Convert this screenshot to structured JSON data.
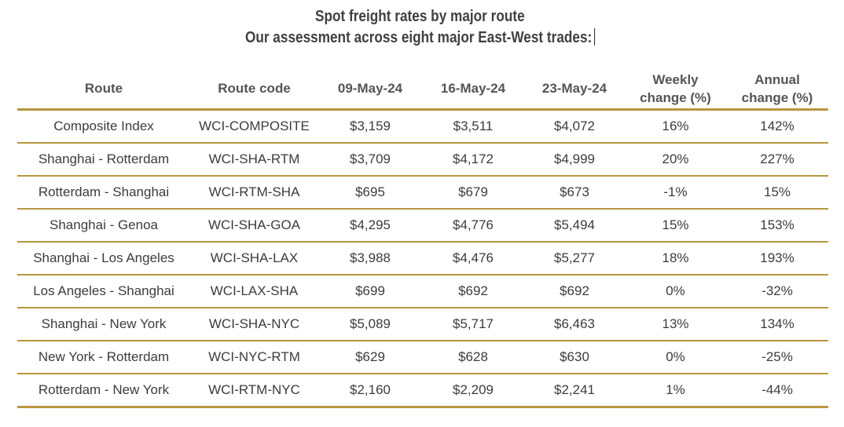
{
  "title": "Spot freight rates by major route",
  "subtitle": "Our assessment across eight major East-West trades:",
  "colors": {
    "rule": "#b8963e",
    "text": "#3c3c3c",
    "header_text": "#555555"
  },
  "chart_data": {
    "type": "table",
    "title": "Spot freight rates by major route",
    "subtitle": "Our assessment across eight major East-West trades:",
    "columns": [
      "Route",
      "Route code",
      "09-May-24",
      "16-May-24",
      "23-May-24",
      "Weekly change (%)",
      "Annual change (%)"
    ],
    "header_lines": [
      [
        "Route"
      ],
      [
        "Route code"
      ],
      [
        "09-May-24"
      ],
      [
        "16-May-24"
      ],
      [
        "23-May-24"
      ],
      [
        "Weekly",
        "change (%)"
      ],
      [
        "Annual",
        "change (%)"
      ]
    ],
    "rows": [
      [
        "Composite Index",
        "WCI-COMPOSITE",
        "$3,159",
        "$3,511",
        "$4,072",
        "16%",
        "142%"
      ],
      [
        "Shanghai - Rotterdam",
        "WCI-SHA-RTM",
        "$3,709",
        "$4,172",
        "$4,999",
        "20%",
        "227%"
      ],
      [
        "Rotterdam - Shanghai",
        "WCI-RTM-SHA",
        "$695",
        "$679",
        "$673",
        "-1%",
        "15%"
      ],
      [
        "Shanghai - Genoa",
        "WCI-SHA-GOA",
        "$4,295",
        "$4,776",
        "$5,494",
        "15%",
        "153%"
      ],
      [
        "Shanghai - Los Angeles",
        "WCI-SHA-LAX",
        "$3,988",
        "$4,476",
        "$5,277",
        "18%",
        "193%"
      ],
      [
        "Los Angeles - Shanghai",
        "WCI-LAX-SHA",
        "$699",
        "$692",
        "$692",
        "0%",
        "-32%"
      ],
      [
        "Shanghai - New York",
        "WCI-SHA-NYC",
        "$5,089",
        "$5,717",
        "$6,463",
        "13%",
        "134%"
      ],
      [
        "New York - Rotterdam",
        "WCI-NYC-RTM",
        "$629",
        "$628",
        "$630",
        "0%",
        "-25%"
      ],
      [
        "Rotterdam - New York",
        "WCI-RTM-NYC",
        "$2,160",
        "$2,209",
        "$2,241",
        "1%",
        "-44%"
      ]
    ]
  }
}
